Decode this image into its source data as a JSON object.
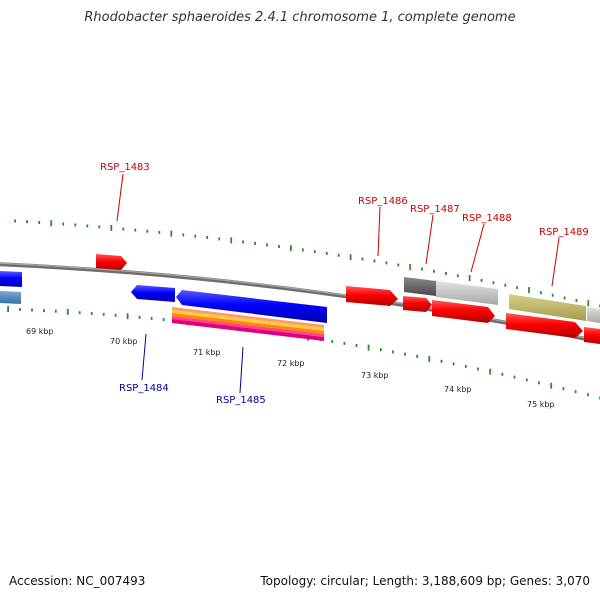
{
  "title": "Rhodobacter sphaeroides 2.4.1 chromosome 1, complete genome",
  "footer": {
    "accession": "Accession: NC_007493",
    "summary": "Topology: circular; Length: 3,188,609 bp; Genes: 3,070"
  },
  "colors": {
    "forward": "#ff0000",
    "reverse": "#0000ff",
    "forward_label": "#cc0000",
    "reverse_label": "#000099",
    "tick": "#2e8b2e",
    "backbone": "#808080"
  },
  "scale": {
    "unit": "kbp",
    "labels": [
      "69 kbp",
      "70 kbp",
      "71 kbp",
      "72 kbp",
      "73 kbp",
      "74 kbp",
      "75 kbp"
    ]
  },
  "gene_labels": [
    {
      "name": "RSP_1483",
      "strand": "forward"
    },
    {
      "name": "RSP_1484",
      "strand": "reverse"
    },
    {
      "name": "RSP_1485",
      "strand": "reverse"
    },
    {
      "name": "RSP_1486",
      "strand": "forward"
    },
    {
      "name": "RSP_1487",
      "strand": "forward"
    },
    {
      "name": "RSP_1488",
      "strand": "forward"
    },
    {
      "name": "RSP_1489",
      "strand": "forward"
    }
  ]
}
